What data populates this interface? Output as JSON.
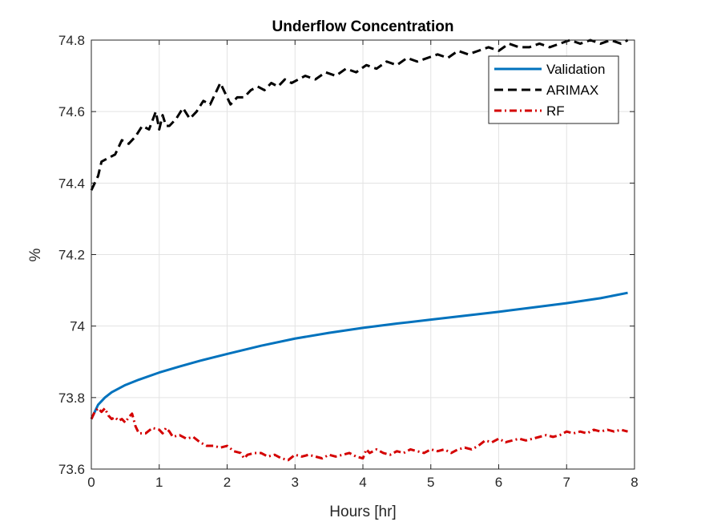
{
  "chart_data": {
    "type": "line",
    "title": "Underflow Concentration",
    "xlabel": "Hours [hr]",
    "ylabel": "%",
    "xlim": [
      0,
      8
    ],
    "ylim": [
      73.6,
      74.8
    ],
    "x_ticks": [
      0,
      1,
      2,
      3,
      4,
      5,
      6,
      7,
      8
    ],
    "x_tick_labels": [
      "0",
      "1",
      "2",
      "3",
      "4",
      "5",
      "6",
      "7",
      "8"
    ],
    "y_ticks": [
      73.6,
      73.8,
      74.0,
      74.2,
      74.4,
      74.6,
      74.8
    ],
    "y_tick_labels": [
      "73.6",
      "73.8",
      "74",
      "74.2",
      "74.4",
      "74.6",
      "74.8"
    ],
    "grid": true,
    "legend_position": "top-right",
    "series": [
      {
        "name": "Validation",
        "color": "#0072BD",
        "style": "solid",
        "x": [
          0,
          0.05,
          0.1,
          0.15,
          0.2,
          0.3,
          0.4,
          0.5,
          0.7,
          1.0,
          1.3,
          1.6,
          2.0,
          2.5,
          3.0,
          3.5,
          4.0,
          4.5,
          5.0,
          5.5,
          6.0,
          6.5,
          7.0,
          7.5,
          7.9
        ],
        "y": [
          73.74,
          73.76,
          73.78,
          73.79,
          73.8,
          73.815,
          73.825,
          73.835,
          73.85,
          73.87,
          73.887,
          73.903,
          73.922,
          73.945,
          73.965,
          73.981,
          73.995,
          74.007,
          74.018,
          74.029,
          74.04,
          74.052,
          74.064,
          74.078,
          74.093
        ]
      },
      {
        "name": "ARIMAX",
        "color": "#000000",
        "style": "dashed",
        "x": [
          0,
          0.1,
          0.15,
          0.25,
          0.35,
          0.45,
          0.55,
          0.65,
          0.75,
          0.85,
          0.95,
          1.0,
          1.05,
          1.1,
          1.15,
          1.25,
          1.35,
          1.45,
          1.55,
          1.65,
          1.75,
          1.85,
          1.9,
          1.95,
          2.05,
          2.15,
          2.25,
          2.35,
          2.45,
          2.55,
          2.65,
          2.75,
          2.85,
          2.95,
          3.05,
          3.15,
          3.3,
          3.45,
          3.6,
          3.75,
          3.9,
          4.05,
          4.2,
          4.35,
          4.5,
          4.65,
          4.8,
          4.95,
          5.1,
          5.25,
          5.4,
          5.55,
          5.7,
          5.85,
          6.0,
          6.15,
          6.3,
          6.45,
          6.6,
          6.75,
          6.9,
          7.05,
          7.2,
          7.35,
          7.5,
          7.65,
          7.8,
          7.9
        ],
        "y": [
          74.38,
          74.42,
          74.46,
          74.47,
          74.48,
          74.52,
          74.51,
          74.53,
          74.56,
          74.55,
          74.6,
          74.55,
          74.59,
          74.56,
          74.56,
          74.58,
          74.61,
          74.58,
          74.6,
          74.63,
          74.62,
          74.66,
          74.68,
          74.66,
          74.62,
          74.64,
          74.64,
          74.66,
          74.67,
          74.66,
          74.68,
          74.67,
          74.69,
          74.68,
          74.69,
          74.7,
          74.69,
          74.71,
          74.7,
          74.72,
          74.71,
          74.73,
          74.72,
          74.74,
          74.73,
          74.75,
          74.74,
          74.75,
          74.76,
          74.75,
          74.77,
          74.76,
          74.77,
          74.78,
          74.77,
          74.79,
          74.78,
          74.78,
          74.79,
          74.78,
          74.79,
          74.8,
          74.79,
          74.8,
          74.79,
          74.8,
          74.79,
          74.8
        ]
      },
      {
        "name": "RF",
        "color": "#D40000",
        "style": "dash-dot",
        "x": [
          0,
          0.05,
          0.1,
          0.15,
          0.2,
          0.25,
          0.3,
          0.35,
          0.4,
          0.45,
          0.5,
          0.55,
          0.6,
          0.65,
          0.7,
          0.8,
          0.9,
          1.0,
          1.05,
          1.1,
          1.15,
          1.2,
          1.3,
          1.4,
          1.5,
          1.6,
          1.7,
          1.8,
          1.9,
          2.0,
          2.1,
          2.2,
          2.25,
          2.3,
          2.4,
          2.5,
          2.6,
          2.7,
          2.8,
          2.9,
          3.0,
          3.1,
          3.2,
          3.3,
          3.4,
          3.5,
          3.6,
          3.7,
          3.8,
          3.9,
          4.0,
          4.05,
          4.1,
          4.2,
          4.3,
          4.4,
          4.5,
          4.6,
          4.7,
          4.8,
          4.9,
          5.0,
          5.1,
          5.2,
          5.3,
          5.4,
          5.5,
          5.6,
          5.7,
          5.8,
          5.9,
          6.0,
          6.1,
          6.2,
          6.3,
          6.4,
          6.5,
          6.6,
          6.7,
          6.8,
          6.9,
          7.0,
          7.1,
          7.2,
          7.3,
          7.4,
          7.5,
          7.6,
          7.7,
          7.8,
          7.9
        ],
        "y": [
          73.74,
          73.76,
          73.77,
          73.76,
          73.77,
          73.75,
          73.74,
          73.745,
          73.735,
          73.74,
          73.73,
          73.745,
          73.755,
          73.72,
          73.7,
          73.7,
          73.715,
          73.71,
          73.7,
          73.715,
          73.705,
          73.69,
          73.695,
          73.685,
          73.69,
          73.675,
          73.665,
          73.665,
          73.66,
          73.665,
          73.65,
          73.645,
          73.63,
          73.64,
          73.645,
          73.645,
          73.635,
          73.64,
          73.63,
          73.625,
          73.64,
          73.635,
          73.64,
          73.635,
          73.63,
          73.64,
          73.635,
          73.64,
          73.645,
          73.635,
          73.63,
          73.655,
          73.645,
          73.655,
          73.645,
          73.64,
          73.65,
          73.645,
          73.655,
          73.65,
          73.645,
          73.655,
          73.65,
          73.655,
          73.645,
          73.655,
          73.66,
          73.655,
          73.665,
          73.68,
          73.675,
          73.685,
          73.675,
          73.68,
          73.685,
          73.68,
          73.685,
          73.69,
          73.695,
          73.69,
          73.695,
          73.705,
          73.7,
          73.705,
          73.7,
          73.71,
          73.705,
          73.71,
          73.705,
          73.71,
          73.705
        ]
      }
    ]
  }
}
